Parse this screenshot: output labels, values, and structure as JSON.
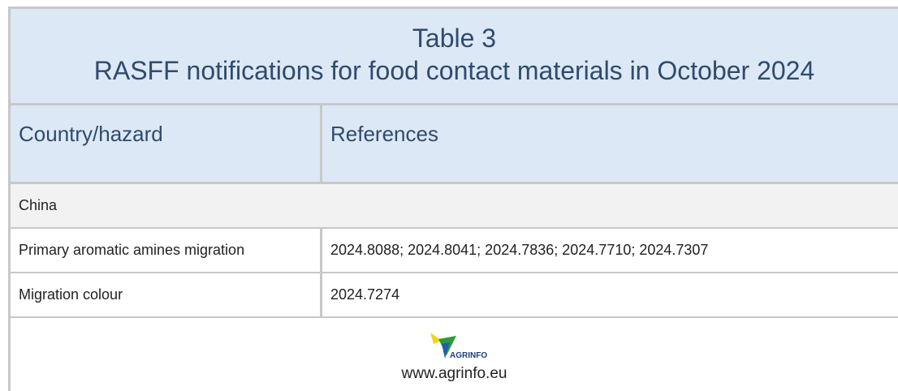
{
  "table": {
    "title": "Table 3",
    "subtitle": "RASFF notifications for food contact materials in October 2024",
    "header": [
      "Country/hazard",
      "References"
    ],
    "rows": [
      [
        "China"
      ],
      [
        "Primary aromatic amines migration",
        "2024.8088; 2024.8041; 2024.7836; 2024.7710; 2024.7307"
      ],
      [
        "Migration colour",
        "2024.7274"
      ]
    ]
  },
  "footer": {
    "logo_text": "AGRINFO",
    "url": "www.agrinfo.eu"
  }
}
